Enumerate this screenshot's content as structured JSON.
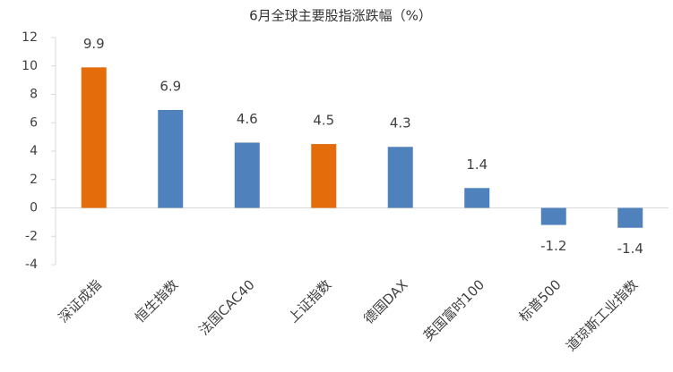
{
  "chart_data": {
    "type": "bar",
    "title": "6月全球主要股指涨跌幅（%）",
    "categories": [
      "深证成指",
      "恒生指数",
      "法国CAC40",
      "上证指数",
      "德国DAX",
      "英国富时100",
      "标普500",
      "道琼斯工业指数"
    ],
    "values": [
      9.9,
      6.9,
      4.6,
      4.5,
      4.3,
      1.4,
      -1.2,
      -1.4
    ],
    "colors": [
      "#e46c0a",
      "#4f81bd",
      "#4f81bd",
      "#e46c0a",
      "#4f81bd",
      "#4f81bd",
      "#4f81bd",
      "#4f81bd"
    ],
    "ylim": [
      -4,
      12
    ],
    "yticks": [
      -4,
      -2,
      0,
      2,
      4,
      6,
      8,
      10,
      12
    ],
    "grid": false
  }
}
